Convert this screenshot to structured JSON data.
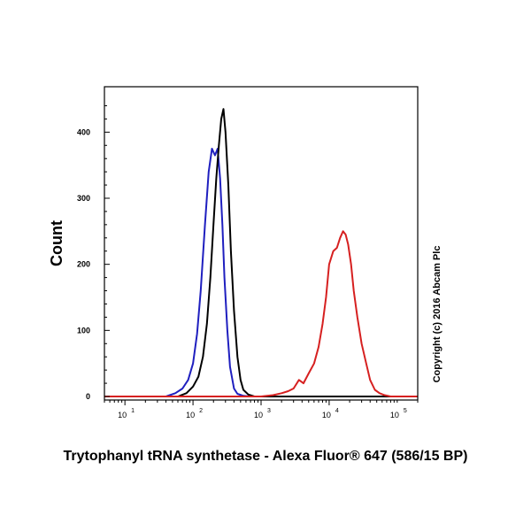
{
  "chart_data": {
    "type": "line",
    "xscale": "log",
    "xlim": [
      5,
      200000
    ],
    "ylim": [
      0,
      450
    ],
    "xlabel": "Trytophanyl tRNA synthetase - Alexa Fluor® 647 (586/15 BP)",
    "ylabel": "Count",
    "annotation": "Copyright (c) 2016 Abcam Plc",
    "x_ticks": [
      {
        "value": 10,
        "base": "10",
        "exp": "1"
      },
      {
        "value": 100,
        "base": "10",
        "exp": "2"
      },
      {
        "value": 1000,
        "base": "10",
        "exp": "3"
      },
      {
        "value": 10000,
        "base": "10",
        "exp": "4"
      },
      {
        "value": 100000,
        "base": "10",
        "exp": "5"
      }
    ],
    "y_ticks": [
      0,
      100,
      200,
      300,
      400
    ],
    "series": [
      {
        "color": "#1f1fbf",
        "x": [
          5,
          40,
          55,
          70,
          85,
          100,
          115,
          130,
          150,
          170,
          190,
          210,
          230,
          250,
          270,
          290,
          320,
          350,
          400,
          450,
          550,
          700,
          200000
        ],
        "y": [
          0,
          0,
          5,
          12,
          25,
          50,
          95,
          160,
          260,
          340,
          375,
          365,
          375,
          330,
          260,
          180,
          100,
          45,
          12,
          4,
          1,
          0,
          0
        ]
      },
      {
        "color": "#000000",
        "x": [
          5,
          60,
          80,
          100,
          120,
          140,
          160,
          180,
          200,
          220,
          240,
          260,
          280,
          300,
          330,
          360,
          400,
          450,
          500,
          550,
          650,
          800,
          200000
        ],
        "y": [
          0,
          0,
          5,
          15,
          30,
          60,
          110,
          180,
          260,
          330,
          380,
          420,
          435,
          400,
          320,
          220,
          130,
          60,
          25,
          10,
          3,
          0,
          0
        ]
      },
      {
        "color": "#d62020",
        "x": [
          5,
          1000,
          1500,
          2000,
          2500,
          3000,
          3600,
          4200,
          5000,
          6000,
          7000,
          8000,
          9000,
          10000,
          11500,
          13000,
          14500,
          16000,
          17500,
          19000,
          21000,
          23000,
          26000,
          30000,
          35000,
          40000,
          47000,
          55000,
          65000,
          80000,
          200000
        ],
        "y": [
          0,
          0,
          2,
          5,
          8,
          12,
          25,
          20,
          35,
          50,
          75,
          110,
          150,
          200,
          220,
          225,
          240,
          250,
          245,
          230,
          200,
          160,
          120,
          80,
          50,
          25,
          10,
          5,
          2,
          0,
          0
        ]
      }
    ]
  }
}
